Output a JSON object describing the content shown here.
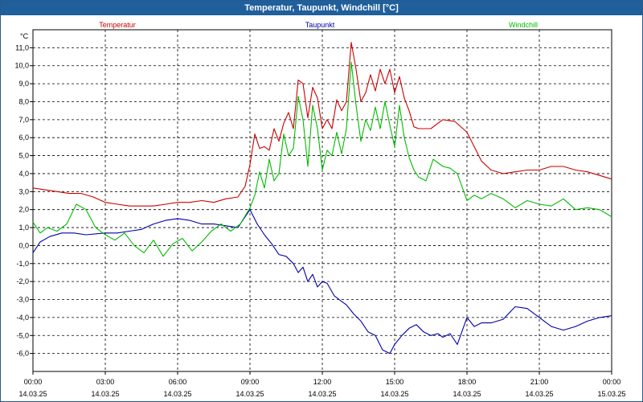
{
  "window": {
    "title": "Temperatur, Taupunkt, Windchill [°C]"
  },
  "chart_data": {
    "type": "line",
    "title": "Temperatur, Taupunkt, Windchill [°C]",
    "ylabel": "°C",
    "xlabel": "",
    "ylim": [
      -7,
      12
    ],
    "xlim": [
      0,
      24
    ],
    "grid": true,
    "legend_placement": "top",
    "y_ticks": [
      {
        "value": 11,
        "label": "11,0"
      },
      {
        "value": 10,
        "label": "10,0"
      },
      {
        "value": 9,
        "label": "9,0"
      },
      {
        "value": 8,
        "label": "8,0"
      },
      {
        "value": 7,
        "label": "7,0"
      },
      {
        "value": 6,
        "label": "6,0"
      },
      {
        "value": 5,
        "label": "5,0"
      },
      {
        "value": 4,
        "label": "4,0"
      },
      {
        "value": 3,
        "label": "3,0"
      },
      {
        "value": 2,
        "label": "2,0"
      },
      {
        "value": 1,
        "label": "1,0"
      },
      {
        "value": 0,
        "label": "0,0"
      },
      {
        "value": -1,
        "label": "-1,0"
      },
      {
        "value": -2,
        "label": "-2,0"
      },
      {
        "value": -3,
        "label": "-3,0"
      },
      {
        "value": -4,
        "label": "-4,0"
      },
      {
        "value": -5,
        "label": "-5,0"
      },
      {
        "value": -6,
        "label": "-6,0"
      }
    ],
    "x_ticks": [
      {
        "value": 0,
        "time": "00:00",
        "date": "14.03.25"
      },
      {
        "value": 3,
        "time": "03:00",
        "date": "14.03.25"
      },
      {
        "value": 6,
        "time": "06:00",
        "date": "14.03.25"
      },
      {
        "value": 9,
        "time": "09:00",
        "date": "14.03.25"
      },
      {
        "value": 12,
        "time": "12:00",
        "date": "14.03.25"
      },
      {
        "value": 15,
        "time": "15:00",
        "date": "14.03.25"
      },
      {
        "value": 18,
        "time": "18:00",
        "date": "14.03.25"
      },
      {
        "value": 21,
        "time": "21:00",
        "date": "14.03.25"
      },
      {
        "value": 24,
        "time": "00:00",
        "date": "15.03.25"
      }
    ],
    "series": [
      {
        "name": "Temperatur",
        "color": "#cc0000",
        "x": [
          0,
          0.5,
          1,
          1.5,
          2,
          2.5,
          3,
          3.5,
          4,
          4.5,
          5,
          5.5,
          6,
          6.5,
          7,
          7.5,
          8,
          8.5,
          8.8,
          9,
          9.2,
          9.4,
          9.6,
          9.8,
          10,
          10.2,
          10.4,
          10.6,
          10.8,
          11,
          11.2,
          11.4,
          11.6,
          11.8,
          12,
          12.2,
          12.4,
          12.6,
          12.8,
          13,
          13.2,
          13.4,
          13.6,
          13.8,
          14,
          14.2,
          14.4,
          14.6,
          14.8,
          15,
          15.2,
          15.4,
          15.6,
          15.8,
          16,
          16.5,
          17,
          17.5,
          18,
          18.3,
          18.6,
          19,
          19.5,
          20,
          20.5,
          21,
          21.5,
          22,
          22.5,
          23,
          23.5,
          24
        ],
        "values": [
          3.2,
          3.1,
          3.0,
          2.9,
          2.9,
          2.7,
          2.4,
          2.3,
          2.2,
          2.2,
          2.2,
          2.3,
          2.4,
          2.4,
          2.5,
          2.4,
          2.6,
          2.7,
          3.3,
          4.5,
          6.2,
          5.4,
          5.5,
          5.3,
          6.5,
          5.8,
          6.8,
          7.4,
          6.5,
          9.2,
          9.0,
          7.1,
          8.8,
          8.2,
          6.5,
          7.0,
          6.5,
          8.1,
          7.5,
          8.0,
          11.3,
          9.8,
          8.0,
          8.5,
          9.5,
          8.6,
          9.8,
          9.0,
          9.8,
          8.5,
          9.4,
          8.2,
          7.5,
          6.6,
          6.5,
          6.5,
          7.0,
          6.9,
          6.3,
          5.5,
          4.7,
          4.2,
          4.0,
          4.1,
          4.2,
          4.2,
          4.4,
          4.4,
          4.2,
          4.1,
          3.9,
          3.7
        ]
      },
      {
        "name": "Taupunkt",
        "color": "#0000aa",
        "x": [
          0,
          0.3,
          0.7,
          1.2,
          1.7,
          2.2,
          3,
          3.5,
          4,
          4.5,
          5,
          5.5,
          6,
          6.5,
          7,
          7.5,
          8,
          8.5,
          9,
          9.3,
          9.6,
          9.9,
          10.2,
          10.5,
          10.8,
          11,
          11.2,
          11.4,
          11.6,
          11.8,
          12,
          12.2,
          12.5,
          12.8,
          13,
          13.3,
          13.6,
          13.9,
          14.2,
          14.5,
          14.8,
          15,
          15.3,
          15.6,
          15.9,
          16.2,
          16.5,
          16.8,
          17,
          17.3,
          17.6,
          18,
          18.3,
          18.6,
          19,
          19.5,
          20,
          20.5,
          21,
          21.5,
          22,
          22.5,
          23,
          23.5,
          24
        ],
        "values": [
          -0.4,
          0.2,
          0.5,
          0.7,
          0.7,
          0.6,
          0.7,
          0.7,
          0.8,
          0.9,
          1.2,
          1.4,
          1.5,
          1.4,
          1.2,
          1.2,
          1.1,
          1.0,
          2.0,
          1.2,
          0.6,
          0.1,
          -0.5,
          -0.6,
          -1.0,
          -1.5,
          -1.2,
          -2.0,
          -1.6,
          -2.3,
          -2.0,
          -2.1,
          -2.8,
          -3.1,
          -3.3,
          -3.8,
          -4.2,
          -4.8,
          -5.0,
          -5.8,
          -6.0,
          -5.5,
          -5.0,
          -4.6,
          -4.4,
          -4.8,
          -5.0,
          -4.9,
          -5.1,
          -4.9,
          -5.5,
          -4.0,
          -4.5,
          -4.3,
          -4.3,
          -4.1,
          -3.4,
          -3.5,
          -4.0,
          -4.5,
          -4.7,
          -4.5,
          -4.2,
          -4.0,
          -3.9
        ]
      },
      {
        "name": "Windchill",
        "color": "#00bb00",
        "x": [
          0,
          0.3,
          0.6,
          1,
          1.4,
          1.8,
          2.2,
          2.6,
          3,
          3.4,
          3.8,
          4.2,
          4.6,
          5,
          5.4,
          5.8,
          6.2,
          6.6,
          7,
          7.4,
          7.8,
          8.2,
          8.6,
          9,
          9.2,
          9.4,
          9.6,
          9.8,
          10,
          10.2,
          10.4,
          10.6,
          10.8,
          11,
          11.2,
          11.4,
          11.6,
          11.8,
          12,
          12.2,
          12.4,
          12.6,
          12.8,
          13,
          13.2,
          13.4,
          13.6,
          13.8,
          14,
          14.2,
          14.4,
          14.6,
          14.8,
          15,
          15.2,
          15.4,
          15.6,
          15.8,
          16,
          16.3,
          16.6,
          17,
          17.3,
          17.6,
          18,
          18.3,
          18.6,
          19,
          19.5,
          20,
          20.5,
          21,
          21.5,
          22,
          22.5,
          23,
          23.5,
          24
        ],
        "values": [
          1.3,
          0.7,
          1.0,
          0.8,
          1.2,
          2.3,
          2.0,
          1.0,
          0.6,
          0.3,
          0.7,
          0.0,
          -0.4,
          0.3,
          -0.6,
          0.1,
          0.4,
          -0.3,
          0.2,
          0.8,
          1.2,
          0.8,
          1.2,
          2.1,
          2.8,
          4.1,
          3.2,
          4.8,
          3.6,
          4.0,
          6.2,
          5.0,
          5.4,
          8.3,
          7.0,
          4.4,
          7.8,
          6.5,
          4.2,
          5.3,
          5.0,
          6.3,
          5.1,
          6.5,
          10.2,
          7.8,
          5.8,
          7.0,
          6.4,
          7.7,
          6.5,
          8.0,
          6.7,
          5.5,
          7.8,
          6.0,
          4.9,
          4.2,
          3.8,
          3.6,
          4.8,
          4.4,
          4.3,
          4.0,
          2.5,
          2.8,
          2.6,
          2.9,
          2.6,
          2.1,
          2.5,
          2.3,
          2.2,
          2.6,
          2.0,
          2.1,
          2.0,
          1.6
        ]
      }
    ]
  }
}
